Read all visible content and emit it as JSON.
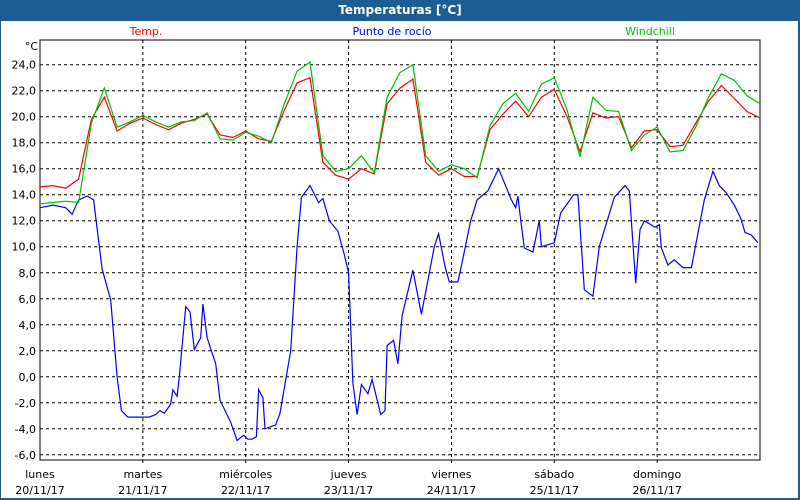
{
  "window": {
    "title": "Temperaturas [°C]"
  },
  "chart_data": {
    "type": "line",
    "title": "Temperaturas [°C]",
    "ylabel": "°C",
    "ylim": [
      -6.4,
      25.9
    ],
    "yticks": [
      24,
      22,
      20,
      18,
      16,
      14,
      12,
      10,
      8,
      6,
      4,
      2,
      0,
      -2,
      -4,
      -6
    ],
    "ytick_labels": [
      "24,0",
      "22,0",
      "20,0",
      "18,0",
      "16,0",
      "14,0",
      "12,0",
      "10,0",
      "8,0",
      "6,0",
      "4,0",
      "2,0",
      "0,0",
      "-2,0",
      "-4,0",
      "-6,0"
    ],
    "xlim": [
      "20/11/17 00:00",
      "27/11/17 00:00"
    ],
    "xticks": [
      {
        "day": "lunes",
        "date": "20/11/17"
      },
      {
        "day": "martes",
        "date": "21/11/17"
      },
      {
        "day": "miércoles",
        "date": "22/11/17"
      },
      {
        "day": "jueves",
        "date": "23/11/17"
      },
      {
        "day": "viernes",
        "date": "24/11/17"
      },
      {
        "day": "sábado",
        "date": "25/11/17"
      },
      {
        "day": "domingo",
        "date": "26/11/17"
      }
    ],
    "grid": true,
    "legend_placement": "top",
    "x": [
      "20/11/17 00:00",
      "20/11/17 03:00",
      "20/11/17 06:00",
      "20/11/17 09:00",
      "20/11/17 12:00",
      "20/11/17 15:00",
      "20/11/17 18:00",
      "20/11/17 21:00",
      "21/11/17 00:00",
      "21/11/17 03:00",
      "21/11/17 06:00",
      "21/11/17 09:00",
      "21/11/17 12:00",
      "21/11/17 15:00",
      "21/11/17 18:00",
      "21/11/17 21:00",
      "22/11/17 00:00",
      "22/11/17 03:00",
      "22/11/17 06:00",
      "22/11/17 09:00",
      "22/11/17 12:00",
      "22/11/17 15:00",
      "22/11/17 18:00",
      "22/11/17 21:00",
      "23/11/17 00:00",
      "23/11/17 03:00",
      "23/11/17 06:00",
      "23/11/17 09:00",
      "23/11/17 12:00",
      "23/11/17 15:00",
      "23/11/17 18:00",
      "23/11/17 21:00",
      "24/11/17 00:00",
      "24/11/17 03:00",
      "24/11/17 06:00",
      "24/11/17 09:00",
      "24/11/17 12:00",
      "24/11/17 15:00",
      "24/11/17 18:00",
      "24/11/17 21:00",
      "25/11/17 00:00",
      "25/11/17 03:00",
      "25/11/17 06:00",
      "25/11/17 09:00",
      "25/11/17 12:00",
      "25/11/17 15:00",
      "25/11/17 18:00",
      "25/11/17 21:00",
      "26/11/17 00:00",
      "26/11/17 03:00",
      "26/11/17 06:00",
      "26/11/17 09:00",
      "26/11/17 12:00",
      "26/11/17 15:00",
      "26/11/17 18:00",
      "26/11/17 21:00",
      "27/11/17 00:00"
    ],
    "series": [
      {
        "name": "Temp.",
        "color": "#ff0000",
        "values": [
          14.6,
          14.7,
          14.5,
          15.2,
          19.8,
          21.5,
          18.9,
          19.5,
          19.9,
          19.4,
          19.0,
          19.5,
          19.8,
          20.2,
          18.6,
          18.4,
          18.9,
          18.3,
          18.1,
          20.5,
          22.6,
          23.0,
          16.5,
          15.5,
          15.2,
          16.0,
          15.6,
          21.0,
          22.2,
          22.9,
          16.5,
          15.5,
          16.0,
          15.4,
          15.4,
          19.0,
          20.2,
          21.2,
          20.0,
          21.5,
          22.1,
          20.0,
          17.3,
          20.3,
          19.9,
          20.0,
          17.6,
          18.9,
          19.0,
          17.7,
          17.8,
          19.5,
          21.2,
          22.4,
          21.4,
          20.4,
          19.9
        ]
      },
      {
        "name": "Punto de rocío",
        "color": "#0000ff",
        "points": [
          [
            "20/11/17 00:00",
            13.0
          ],
          [
            "20/11/17 03:00",
            13.2
          ],
          [
            "20/11/17 06:00",
            13.0
          ],
          [
            "20/11/17 07:30",
            12.5
          ],
          [
            "20/11/17 09:00",
            13.6
          ],
          [
            "20/11/17 11:00",
            13.9
          ],
          [
            "20/11/17 12:30",
            13.6
          ],
          [
            "20/11/17 14:30",
            8.3
          ],
          [
            "20/11/17 16:30",
            5.9
          ],
          [
            "20/11/17 18:00",
            0.0
          ],
          [
            "20/11/17 19:00",
            -2.6
          ],
          [
            "20/11/17 20:30",
            -3.1
          ],
          [
            "21/11/17 01:30",
            -3.1
          ],
          [
            "21/11/17 03:00",
            -2.9
          ],
          [
            "21/11/17 04:00",
            -2.6
          ],
          [
            "21/11/17 05:00",
            -2.8
          ],
          [
            "21/11/17 06:30",
            -2.1
          ],
          [
            "21/11/17 07:00",
            -1.0
          ],
          [
            "21/11/17 08:00",
            -1.5
          ],
          [
            "21/11/17 08:30",
            0.0
          ],
          [
            "21/11/17 10:00",
            5.4
          ],
          [
            "21/11/17 11:00",
            5.0
          ],
          [
            "21/11/17 12:00",
            2.1
          ],
          [
            "21/11/17 13:30",
            3.0
          ],
          [
            "21/11/17 14:00",
            5.6
          ],
          [
            "21/11/17 15:00",
            3.0
          ],
          [
            "21/11/17 17:00",
            1.0
          ],
          [
            "21/11/17 18:00",
            -1.8
          ],
          [
            "21/11/17 20:30",
            -3.5
          ],
          [
            "21/11/17 22:00",
            -4.9
          ],
          [
            "21/11/17 23:30",
            -4.5
          ],
          [
            "22/11/17 00:30",
            -4.8
          ],
          [
            "22/11/17 01:30",
            -4.8
          ],
          [
            "22/11/17 02:30",
            -4.6
          ],
          [
            "22/11/17 03:00",
            -1.0
          ],
          [
            "22/11/17 04:00",
            -1.6
          ],
          [
            "22/11/17 04:30",
            -4.0
          ],
          [
            "22/11/17 07:00",
            -3.7
          ],
          [
            "22/11/17 08:00",
            -2.8
          ],
          [
            "22/11/17 10:30",
            2.0
          ],
          [
            "22/11/17 12:00",
            10.0
          ],
          [
            "22/11/17 13:00",
            13.8
          ],
          [
            "22/11/17 15:00",
            14.7
          ],
          [
            "22/11/17 17:00",
            13.4
          ],
          [
            "22/11/17 18:00",
            13.7
          ],
          [
            "22/11/17 19:30",
            12.0
          ],
          [
            "22/11/17 21:30",
            11.2
          ],
          [
            "22/11/17 23:00",
            9.4
          ],
          [
            "23/11/17 00:00",
            8.0
          ],
          [
            "23/11/17 01:00",
            -0.5
          ],
          [
            "23/11/17 02:00",
            -2.9
          ],
          [
            "23/11/17 03:00",
            -0.6
          ],
          [
            "23/11/17 04:30",
            -1.3
          ],
          [
            "23/11/17 05:30",
            -0.2
          ],
          [
            "23/11/17 07:30",
            -2.9
          ],
          [
            "23/11/17 08:30",
            -2.6
          ],
          [
            "23/11/17 09:00",
            2.4
          ],
          [
            "23/11/17 10:30",
            2.8
          ],
          [
            "23/11/17 11:30",
            1.0
          ],
          [
            "23/11/17 12:30",
            4.7
          ],
          [
            "23/11/17 15:00",
            8.2
          ],
          [
            "23/11/17 17:00",
            4.8
          ],
          [
            "23/11/17 20:00",
            10.0
          ],
          [
            "23/11/17 21:00",
            11.0
          ],
          [
            "23/11/17 22:30",
            8.5
          ],
          [
            "23/11/17 23:30",
            7.3
          ],
          [
            "24/11/17 01:30",
            7.3
          ],
          [
            "24/11/17 02:30",
            8.8
          ],
          [
            "24/11/17 04:30",
            12.0
          ],
          [
            "24/11/17 06:00",
            13.6
          ],
          [
            "24/11/17 08:30",
            14.3
          ],
          [
            "24/11/17 11:00",
            16.0
          ],
          [
            "24/11/17 12:30",
            14.8
          ],
          [
            "24/11/17 14:00",
            13.6
          ],
          [
            "24/11/17 15:00",
            13.0
          ],
          [
            "24/11/17 15:30",
            13.9
          ],
          [
            "24/11/17 16:00",
            12.5
          ],
          [
            "24/11/17 17:00",
            9.9
          ],
          [
            "24/11/17 19:00",
            9.6
          ],
          [
            "24/11/17 20:30",
            12.0
          ],
          [
            "24/11/17 21:00",
            10.0
          ],
          [
            "25/11/17 00:00",
            10.3
          ],
          [
            "25/11/17 01:30",
            12.6
          ],
          [
            "25/11/17 04:30",
            14.0
          ],
          [
            "25/11/17 05:30",
            14.0
          ],
          [
            "25/11/17 07:00",
            6.7
          ],
          [
            "25/11/17 09:00",
            6.2
          ],
          [
            "25/11/17 10:30",
            10.0
          ],
          [
            "25/11/17 14:00",
            13.8
          ],
          [
            "25/11/17 16:30",
            14.7
          ],
          [
            "25/11/17 17:30",
            14.3
          ],
          [
            "25/11/17 19:00",
            7.2
          ],
          [
            "25/11/17 20:00",
            11.3
          ],
          [
            "25/11/17 21:00",
            12.0
          ],
          [
            "25/11/17 23:30",
            11.5
          ],
          [
            "26/11/17 00:30",
            11.7
          ],
          [
            "26/11/17 01:00",
            9.9
          ],
          [
            "26/11/17 02:30",
            8.6
          ],
          [
            "26/11/17 04:00",
            9.0
          ],
          [
            "26/11/17 06:00",
            8.4
          ],
          [
            "26/11/17 08:00",
            8.4
          ],
          [
            "26/11/17 11:00",
            13.6
          ],
          [
            "26/11/17 13:00",
            15.8
          ],
          [
            "26/11/17 14:30",
            14.7
          ],
          [
            "26/11/17 16:00",
            14.2
          ],
          [
            "26/11/17 18:00",
            13.2
          ],
          [
            "26/11/17 19:30",
            12.2
          ],
          [
            "26/11/17 20:30",
            11.1
          ],
          [
            "26/11/17 22:00",
            10.9
          ],
          [
            "26/11/17 23:30",
            10.3
          ]
        ]
      },
      {
        "name": "Windchill",
        "color": "#00c000",
        "values": [
          13.3,
          13.4,
          13.5,
          13.4,
          19.5,
          22.2,
          19.2,
          19.6,
          20.1,
          19.6,
          19.2,
          19.6,
          19.7,
          20.3,
          18.3,
          18.2,
          18.8,
          18.5,
          18.0,
          21.0,
          23.5,
          24.2,
          17.0,
          15.8,
          16.0,
          17.0,
          15.7,
          21.5,
          23.4,
          24.0,
          17.0,
          15.8,
          16.3,
          16.0,
          15.3,
          19.3,
          21.0,
          21.8,
          20.4,
          22.5,
          23.0,
          20.5,
          16.9,
          21.5,
          20.5,
          20.4,
          17.4,
          18.6,
          19.2,
          17.3,
          17.4,
          19.2,
          21.5,
          23.3,
          22.8,
          21.6,
          21.0
        ]
      }
    ]
  }
}
